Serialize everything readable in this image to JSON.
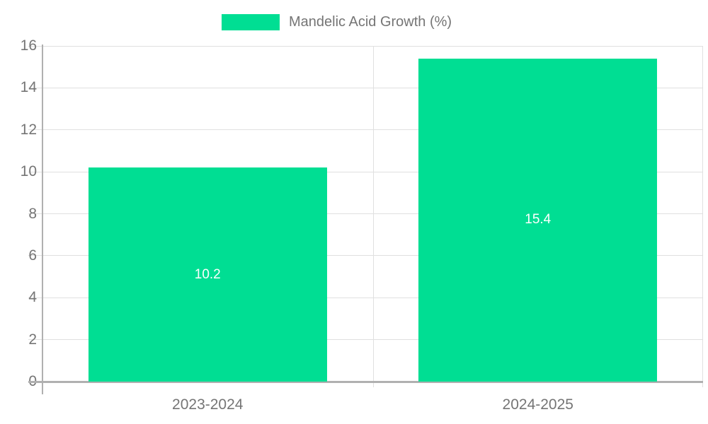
{
  "legend": {
    "label": "Mandelic Acid Growth (%)"
  },
  "colors": {
    "series": "#00DE93",
    "axis_text": "#757575",
    "grid_line": "#e0e0e0",
    "axis_line": "#b0b0b0",
    "value_label": "#ffffff",
    "background": "#ffffff"
  },
  "chart_data": {
    "type": "bar",
    "title": "Mandelic Acid Growth (%)",
    "series_name": "Mandelic Acid Growth (%)",
    "categories": [
      "2023-2024",
      "2024-2025"
    ],
    "values": [
      10.2,
      15.4
    ],
    "value_labels": [
      "10.2",
      "15.4"
    ],
    "xlabel": "",
    "ylabel": "",
    "ylim": [
      0,
      16
    ],
    "yticks": [
      0,
      2,
      4,
      6,
      8,
      10,
      12,
      14,
      16
    ],
    "ytick_labels": [
      "0",
      "2",
      "4",
      "6",
      "8",
      "10",
      "12",
      "14",
      "16"
    ],
    "grid": true,
    "legend_position": "top-center",
    "bar_color": "#00DE93",
    "data_label_position": "center-inside",
    "data_label_color": "#ffffff"
  }
}
